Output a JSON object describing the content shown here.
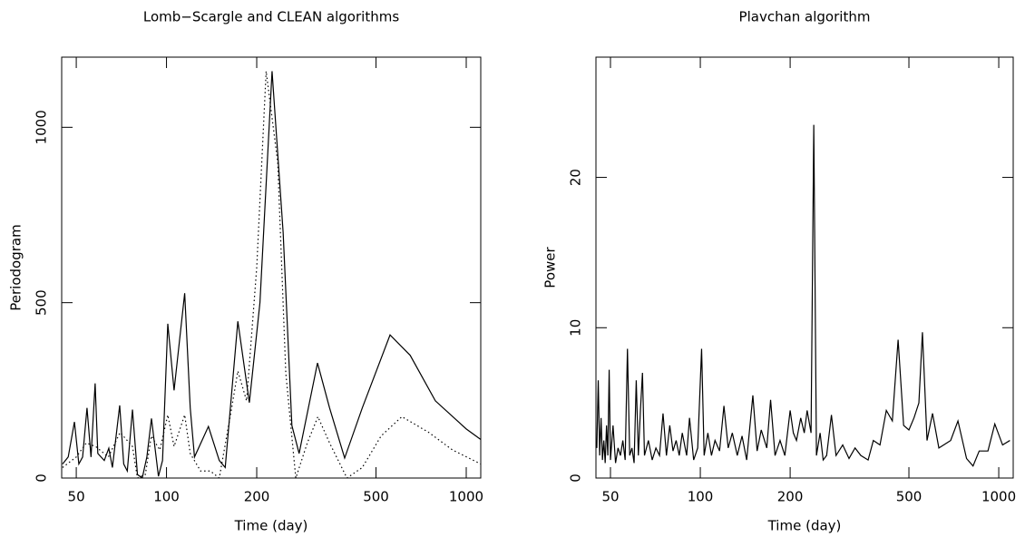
{
  "chart_data": [
    {
      "type": "line",
      "title": "Lomb−Scargle and CLEAN algorithms",
      "x_label": "Time (day)",
      "y_label": "Periodogram",
      "xscale": "log",
      "xlim": [
        44.7,
        1118
      ],
      "xticks": [
        50,
        100,
        200,
        500,
        1000
      ],
      "ylim": [
        0,
        1200
      ],
      "yticks": [
        0,
        500,
        1000
      ],
      "series": [
        {
          "color": "#000000",
          "line_style": "solid",
          "x": [
            45,
            47,
            49.3,
            51,
            52.5,
            54.3,
            56,
            57.8,
            59,
            62,
            64.2,
            66,
            69.8,
            72,
            74,
            77,
            80,
            83,
            86,
            89.1,
            94,
            97,
            101,
            106,
            115,
            120,
            124,
            138,
            150,
            157,
            173,
            189,
            205,
            225,
            245,
            262,
            277,
            319,
            350,
            393,
            450,
            557,
            650,
            789,
            1000,
            1118
          ],
          "values": [
            40,
            60,
            160,
            40,
            60,
            200,
            60,
            270,
            70,
            50,
            85,
            30,
            207,
            40,
            20,
            195,
            10,
            0,
            60,
            170,
            5,
            50,
            440,
            250,
            527,
            200,
            60,
            147,
            50,
            30,
            447,
            215,
            500,
            1160,
            700,
            150,
            70,
            328,
            200,
            57,
            200,
            408,
            350,
            220,
            140,
            110
          ]
        },
        {
          "color": "#000000",
          "line_style": "dotted",
          "x": [
            45,
            50,
            54,
            58,
            64,
            70,
            77,
            80,
            85,
            89,
            95,
            101,
            106,
            115,
            120,
            130,
            140,
            150,
            165,
            173,
            185,
            200,
            215,
            235,
            250,
            270,
            295,
            320,
            350,
            400,
            450,
            520,
            610,
            750,
            900,
            1118
          ],
          "values": [
            30,
            60,
            100,
            90,
            60,
            130,
            90,
            0,
            10,
            120,
            80,
            180,
            90,
            180,
            70,
            20,
            20,
            0,
            200,
            305,
            220,
            600,
            1160,
            900,
            300,
            0,
            100,
            175,
            100,
            0,
            30,
            120,
            175,
            130,
            80,
            40
          ]
        }
      ]
    },
    {
      "type": "line",
      "title": "Plavchan algorithm",
      "x_label": "Time (day)",
      "y_label": "Power",
      "xscale": "log",
      "xlim": [
        44.7,
        1118
      ],
      "xticks": [
        50,
        100,
        200,
        500,
        1000
      ],
      "ylim": [
        0,
        28
      ],
      "yticks": [
        0,
        10,
        20
      ],
      "series": [
        {
          "color": "#000000",
          "line_style": "solid",
          "x": [
            45,
            45.5,
            46,
            46.5,
            47,
            47.5,
            48,
            48.5,
            49,
            49.5,
            50,
            51,
            52,
            53,
            54,
            55,
            56,
            57,
            58,
            59,
            60,
            61,
            62,
            63,
            64,
            65,
            67,
            69,
            71,
            73,
            75,
            77,
            79,
            81,
            83,
            85,
            87,
            90,
            92,
            95,
            98,
            101,
            103,
            106,
            109,
            112,
            116,
            120,
            124,
            128,
            133,
            138,
            143,
            150,
            155,
            160,
            167,
            172,
            178,
            185,
            192,
            200,
            205,
            210,
            217,
            223,
            228,
            235,
            240,
            245,
            252,
            258,
            265,
            275,
            285,
            300,
            315,
            330,
            345,
            365,
            380,
            400,
            420,
            440,
            460,
            480,
            500,
            520,
            540,
            555,
            575,
            600,
            630,
            690,
            730,
            780,
            820,
            860,
            920,
            970,
            1030,
            1090
          ],
          "values": [
            2,
            6.5,
            1.5,
            4,
            1.2,
            2.5,
            1,
            3.5,
            1.5,
            7.2,
            1.2,
            3.5,
            1,
            2,
            1.5,
            2.5,
            1.2,
            8.6,
            1.5,
            2,
            1,
            6.5,
            1.5,
            4.5,
            7,
            1.5,
            2.5,
            1.2,
            2,
            1.5,
            4.3,
            1.5,
            3.5,
            1.8,
            2.5,
            1.5,
            3,
            1.5,
            4,
            1.2,
            2,
            8.6,
            1.5,
            3,
            1.5,
            2.5,
            1.8,
            4.8,
            2,
            3,
            1.5,
            2.8,
            1.2,
            5.5,
            1.8,
            3.2,
            2,
            5.2,
            1.5,
            2.5,
            1.5,
            4.5,
            3,
            2.5,
            4,
            3,
            4.5,
            3,
            23.5,
            1.5,
            3,
            1.2,
            1.5,
            4.2,
            1.5,
            2.2,
            1.3,
            2,
            1.5,
            1.2,
            2.5,
            2.2,
            4.5,
            3.8,
            9.2,
            3.5,
            3.2,
            4,
            5,
            9.7,
            2.5,
            4.3,
            2,
            2.5,
            3.8,
            1.3,
            0.8,
            1.8,
            1.8,
            3.6,
            2.2,
            2.5
          ]
        }
      ]
    }
  ]
}
